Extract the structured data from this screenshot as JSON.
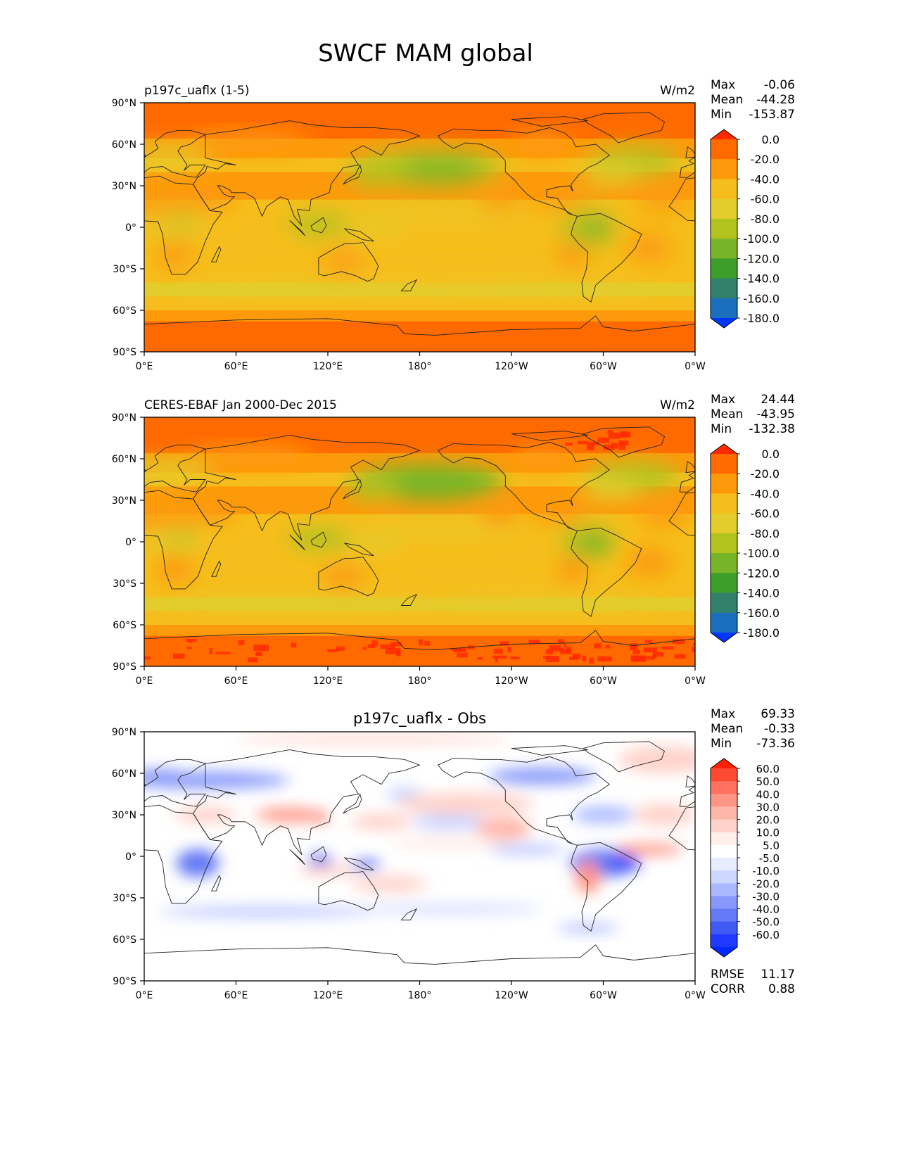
{
  "figure": {
    "title": "SWCF MAM global"
  },
  "lat_labels": [
    "90°N",
    "60°N",
    "30°N",
    "0°",
    "30°S",
    "60°S",
    "90°S"
  ],
  "lon_labels": [
    "0°E",
    "60°E",
    "120°E",
    "180°",
    "120°W",
    "60°W",
    "0°W"
  ],
  "panels": [
    {
      "id": "test",
      "left_title": "p197c_uaflx (1-5)",
      "center_title": "",
      "units": "W/m2",
      "stats": [
        {
          "label": "Max",
          "value": "-0.06"
        },
        {
          "label": "Mean",
          "value": "-44.28"
        },
        {
          "label": "Min",
          "value": "-153.87"
        }
      ],
      "colorbar": {
        "colors": [
          "#ff2a00",
          "#ff6a00",
          "#fd9a0b",
          "#f6be1c",
          "#e3cc2b",
          "#b2c320",
          "#78b428",
          "#3d9f2a",
          "#318069",
          "#1c6fbd",
          "#0037ff"
        ],
        "labels": [
          "0.0",
          "-20.0",
          "-40.0",
          "-60.0",
          "-80.0",
          "-100.0",
          "-120.0",
          "-140.0",
          "-160.0",
          "-180.0"
        ]
      },
      "footer_stats": []
    },
    {
      "id": "obs",
      "left_title": "CERES-EBAF Jan 2000-Dec 2015",
      "center_title": "",
      "units": "W/m2",
      "stats": [
        {
          "label": "Max",
          "value": "24.44"
        },
        {
          "label": "Mean",
          "value": "-43.95"
        },
        {
          "label": "Min",
          "value": "-132.38"
        }
      ],
      "colorbar": {
        "colors": [
          "#ff2a00",
          "#ff6a00",
          "#fd9a0b",
          "#f6be1c",
          "#e3cc2b",
          "#b2c320",
          "#78b428",
          "#3d9f2a",
          "#318069",
          "#1c6fbd",
          "#0037ff"
        ],
        "labels": [
          "0.0",
          "-20.0",
          "-40.0",
          "-60.0",
          "-80.0",
          "-100.0",
          "-120.0",
          "-140.0",
          "-160.0",
          "-180.0"
        ]
      },
      "footer_stats": []
    },
    {
      "id": "diff",
      "left_title": "",
      "center_title": "p197c_uaflx - Obs",
      "units": "",
      "stats": [
        {
          "label": "Max",
          "value": "69.33"
        },
        {
          "label": "Mean",
          "value": "-0.33"
        },
        {
          "label": "Min",
          "value": "-73.36"
        }
      ],
      "colorbar": {
        "colors": [
          "#ff2200",
          "#ff4a33",
          "#ff705f",
          "#ff9585",
          "#ffb6aa",
          "#ffd3cb",
          "#ffeeea",
          "#ffffff",
          "#e8ecff",
          "#cdd6ff",
          "#aab9ff",
          "#8799fb",
          "#6379f5",
          "#4059f3",
          "#2038ff",
          "#0028ff"
        ],
        "labels": [
          "60.0",
          "50.0",
          "40.0",
          "30.0",
          "20.0",
          "10.0",
          "5.0",
          "-5.0",
          "-10.0",
          "-20.0",
          "-30.0",
          "-40.0",
          "-50.0",
          "-60.0"
        ]
      },
      "footer_stats": [
        {
          "label": "RMSE",
          "value": "11.17"
        },
        {
          "label": "CORR",
          "value": "0.88"
        }
      ]
    }
  ]
}
